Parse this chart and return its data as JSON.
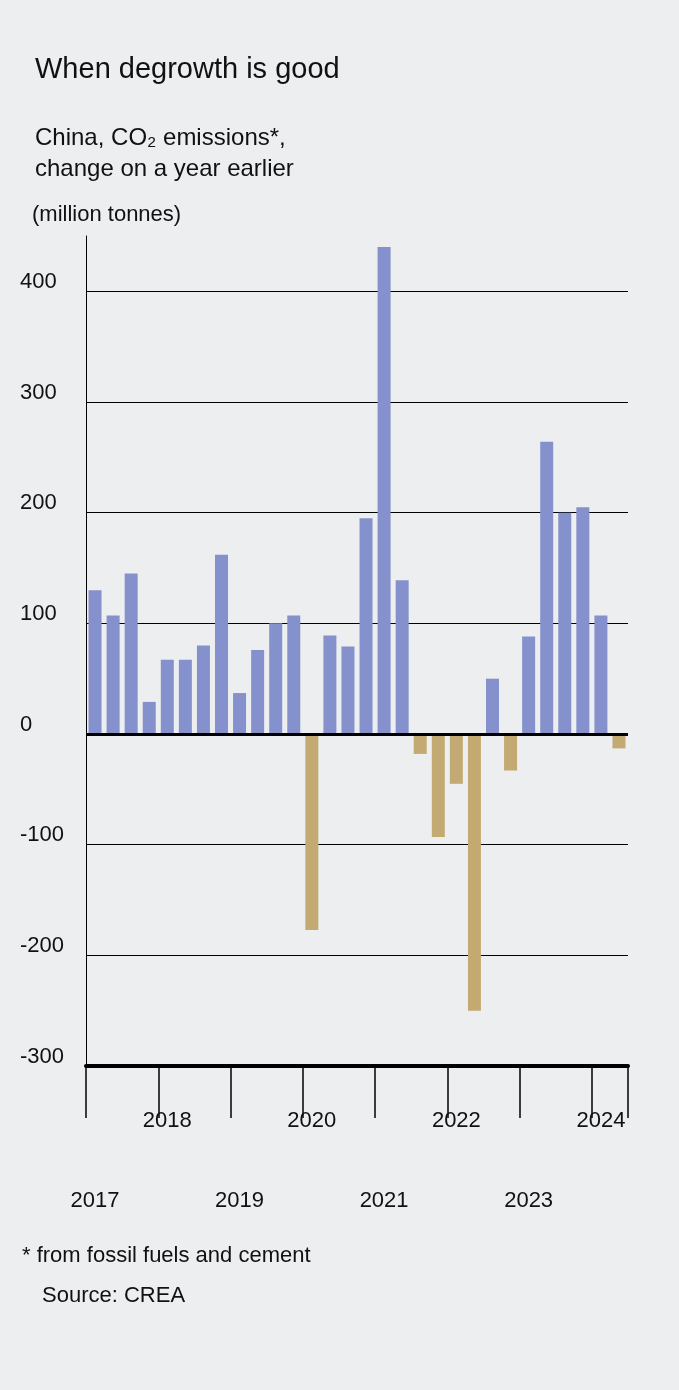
{
  "chart_data": {
    "type": "bar",
    "title": "When degrowth is good",
    "subtitle": "China, CO₂ emissions*,\nchange on a year earlier",
    "ylabel": "(million tonnes)",
    "categories": [
      "2017",
      null,
      null,
      null,
      "2018",
      null,
      null,
      null,
      "2019",
      null,
      null,
      null,
      "2020",
      null,
      null,
      null,
      "2021",
      null,
      null,
      null,
      "2022",
      null,
      null,
      null,
      "2023",
      null,
      null,
      null,
      "2024",
      null
    ],
    "values": [
      130,
      107,
      145,
      29,
      67,
      67,
      80,
      162,
      37,
      76,
      100,
      107,
      -177,
      89,
      79,
      195,
      440,
      139,
      -18,
      -93,
      -45,
      -250,
      50,
      -33,
      88,
      264,
      200,
      205,
      107,
      -13
    ],
    "colors": [
      "#8591cc",
      "#8591cc",
      "#8591cc",
      "#8591cc",
      "#8591cc",
      "#8591cc",
      "#8591cc",
      "#8591cc",
      "#8591cc",
      "#8591cc",
      "#8591cc",
      "#8591cc",
      "#c2aa72",
      "#8591cc",
      "#8591cc",
      "#8591cc",
      "#8591cc",
      "#8591cc",
      "#c2aa72",
      "#c2aa72",
      "#c2aa72",
      "#c2aa72",
      "#8591cc",
      "#c2aa72",
      "#8591cc",
      "#8591cc",
      "#8591cc",
      "#8591cc",
      "#8591cc",
      "#c2aa72"
    ],
    "ylim": [
      -300,
      450
    ],
    "yticks": [
      -300,
      -200,
      -100,
      0,
      100,
      200,
      300,
      400
    ],
    "grid": "y",
    "ref_lines": [
      {
        "axis": "y",
        "value": 0
      }
    ],
    "annotations": [
      "* from fossil fuels and cement",
      "Source: CREA"
    ]
  }
}
